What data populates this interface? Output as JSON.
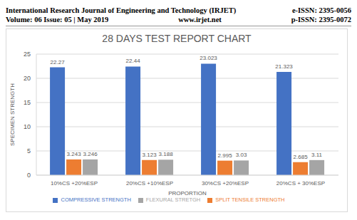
{
  "header": {
    "journal": "International Research Journal of Engineering and Technology (IRJET)",
    "e_issn": "e-ISSN: 2395-0056",
    "volume": "Volume: 06 Issue: 05 | May 2019",
    "website": "www.irjet.net",
    "p_issn": "p-ISSN: 2395-0072"
  },
  "chart_data": {
    "type": "bar",
    "title": "28 DAYS TEST REPORT CHART",
    "x_label": "PROPORTION",
    "y_label": "SPECIMEN STRENGTH",
    "categories": [
      "10%CS +20%ESP",
      "20%CS +10%ESP",
      "30%CS +20%ESP",
      "20%CS + 30%ESP"
    ],
    "series": [
      {
        "name": "COMPRESSIVE STRENGTH",
        "color": "#4472c4",
        "values": [
          22.27,
          22.44,
          23.023,
          21.323
        ]
      },
      {
        "name": "SPLIT TENSILE STRENGTH",
        "color": "#ed7d31",
        "values": [
          3.243,
          3.123,
          2.995,
          2.685
        ]
      },
      {
        "name": "FLEXURAL STRETGH",
        "color": "#a5a5a5",
        "values": [
          3.246,
          3.188,
          3.03,
          3.11
        ]
      }
    ],
    "ylim": [
      0,
      25
    ],
    "yticks": [
      0,
      5,
      10,
      15,
      20,
      25
    ],
    "grid": true,
    "legend": "bottom",
    "data_labels": true
  }
}
